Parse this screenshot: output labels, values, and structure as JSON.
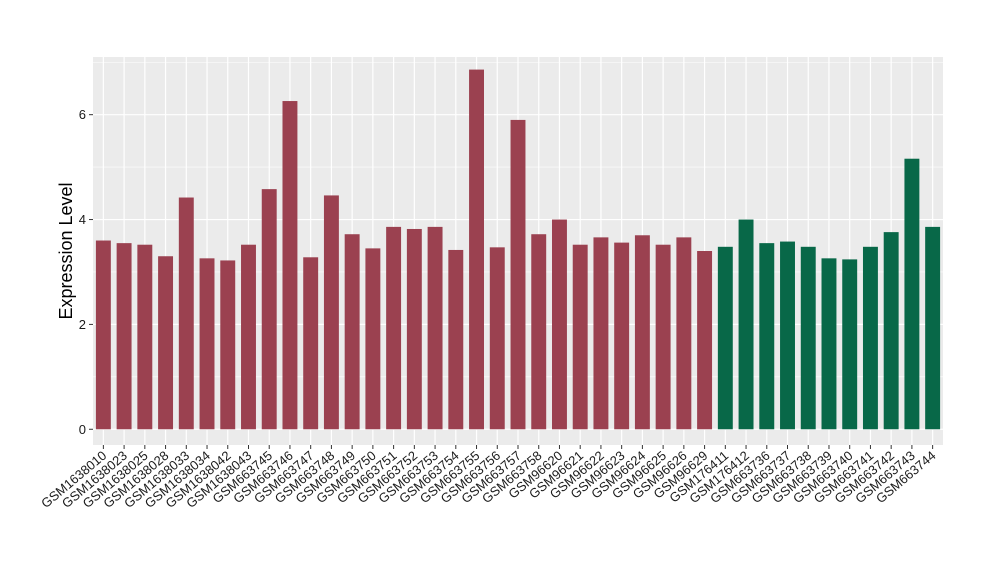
{
  "chart_data": {
    "type": "bar",
    "title": "",
    "xlabel": "",
    "ylabel": "Expression Level",
    "ylim": [
      -0.3,
      7.1
    ],
    "yticks": [
      0,
      2,
      4,
      6
    ],
    "grid": true,
    "legend": "none",
    "panel_color": "#EBEBEB",
    "grid_color": "#FFFFFF",
    "categories": [
      "GSM1638010",
      "GSM1638023",
      "GSM1638025",
      "GSM1638028",
      "GSM1638033",
      "GSM1638034",
      "GSM1638042",
      "GSM1638043",
      "GSM663745",
      "GSM663746",
      "GSM663747",
      "GSM663748",
      "GSM663749",
      "GSM663750",
      "GSM663751",
      "GSM663752",
      "GSM663753",
      "GSM663754",
      "GSM663755",
      "GSM663756",
      "GSM663757",
      "GSM663758",
      "GSM96620",
      "GSM96621",
      "GSM96622",
      "GSM96623",
      "GSM96624",
      "GSM96625",
      "GSM96626",
      "GSM96629",
      "GSM176411",
      "GSM176412",
      "GSM663736",
      "GSM663737",
      "GSM663738",
      "GSM663739",
      "GSM663740",
      "GSM663741",
      "GSM663742",
      "GSM663743",
      "GSM663744"
    ],
    "series": [
      {
        "color": "#9B4150",
        "values": [
          3.6,
          3.55,
          3.52,
          3.3,
          4.42,
          3.26,
          3.22,
          3.52,
          4.58,
          6.26,
          3.28,
          4.46,
          3.72,
          3.45,
          3.86,
          3.82,
          3.86,
          3.42,
          6.86,
          3.47,
          5.9,
          3.72,
          4.0,
          3.52,
          3.66,
          3.56,
          3.7,
          3.52,
          3.66,
          3.4,
          null,
          null,
          null,
          null,
          null,
          null,
          null,
          null,
          null,
          null,
          null
        ]
      },
      {
        "color": "#086848",
        "values": [
          null,
          null,
          null,
          null,
          null,
          null,
          null,
          null,
          null,
          null,
          null,
          null,
          null,
          null,
          null,
          null,
          null,
          null,
          null,
          null,
          null,
          null,
          null,
          null,
          null,
          null,
          null,
          null,
          null,
          null,
          3.48,
          4.0,
          3.55,
          3.58,
          3.48,
          3.26,
          3.24,
          3.48,
          3.76,
          5.16,
          3.86
        ]
      }
    ]
  }
}
